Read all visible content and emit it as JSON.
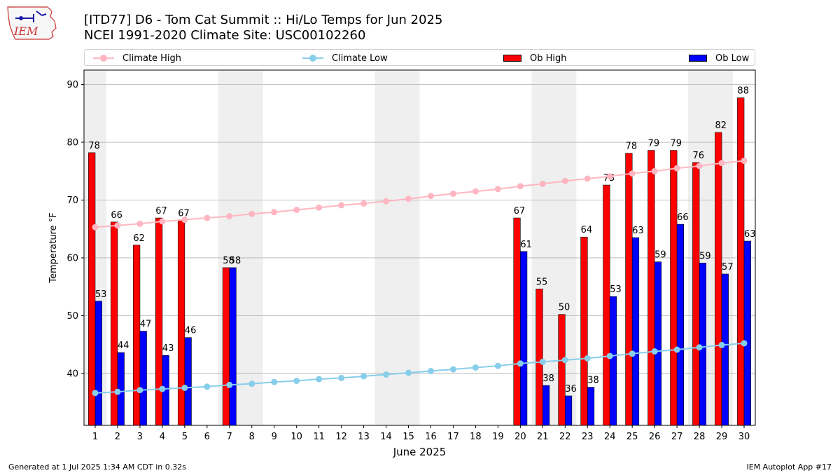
{
  "header": {
    "title_line1": "[ITD77] D6 - Tom Cat Summit  :: Hi/Lo Temps for Jun 2025",
    "title_line2": "NCEI 1991-2020 Climate Site: USC00102260",
    "logo_text": "IEM"
  },
  "footer": {
    "left": "Generated at 1 Jul 2025 1:34 AM CDT in 0.32s",
    "right": "IEM Autoplot App #17"
  },
  "colors": {
    "climate_high": "#ffb6c1",
    "climate_low": "#87ceeb",
    "ob_high": "#ff0000",
    "ob_low": "#0000ff",
    "weekend_shade": "#efefef",
    "grid": "#b0b0b0"
  },
  "chart_data": {
    "type": "bar",
    "xlabel": "June 2025",
    "ylabel": "Temperature °F",
    "ylim": [
      31,
      92.5
    ],
    "yticks": [
      40,
      50,
      60,
      70,
      80,
      90
    ],
    "grid": "horizontal",
    "legend_placement": "top",
    "categories": [
      "1",
      "2",
      "3",
      "4",
      "5",
      "6",
      "7",
      "8",
      "9",
      "10",
      "11",
      "12",
      "13",
      "14",
      "15",
      "16",
      "17",
      "18",
      "19",
      "20",
      "21",
      "22",
      "23",
      "24",
      "25",
      "26",
      "27",
      "28",
      "29",
      "30"
    ],
    "shaded_weekends": [
      [
        1,
        1
      ],
      [
        7,
        8
      ],
      [
        14,
        15
      ],
      [
        21,
        22
      ],
      [
        28,
        29
      ]
    ],
    "series": [
      {
        "name": "Climate High",
        "kind": "line",
        "values": [
          65.3,
          65.6,
          65.9,
          66.3,
          66.6,
          66.9,
          67.2,
          67.6,
          67.9,
          68.3,
          68.7,
          69.1,
          69.4,
          69.8,
          70.2,
          70.7,
          71.1,
          71.5,
          71.9,
          72.4,
          72.8,
          73.3,
          73.7,
          74.1,
          74.6,
          75.0,
          75.5,
          75.9,
          76.4,
          76.8
        ]
      },
      {
        "name": "Climate Low",
        "kind": "line",
        "values": [
          36.6,
          36.8,
          37.1,
          37.3,
          37.5,
          37.7,
          38.0,
          38.2,
          38.5,
          38.7,
          39.0,
          39.2,
          39.5,
          39.8,
          40.1,
          40.4,
          40.7,
          41.0,
          41.3,
          41.7,
          42.0,
          42.3,
          42.6,
          43.0,
          43.4,
          43.8,
          44.1,
          44.5,
          44.9,
          45.2
        ]
      },
      {
        "name": "Ob High",
        "kind": "bar",
        "values": [
          78.2,
          66.2,
          62.2,
          66.9,
          66.5,
          null,
          58.3,
          null,
          null,
          null,
          null,
          null,
          null,
          null,
          null,
          null,
          null,
          null,
          null,
          66.9,
          54.6,
          50.2,
          63.6,
          72.6,
          78.1,
          78.6,
          78.6,
          76.5,
          81.7,
          87.7
        ],
        "labels": [
          "78",
          "66",
          "62",
          "67",
          "67",
          null,
          "58",
          null,
          null,
          null,
          null,
          null,
          null,
          null,
          null,
          null,
          null,
          null,
          null,
          "67",
          "55",
          "50",
          "64",
          "73",
          "78",
          "79",
          "79",
          "76",
          "82",
          "88"
        ]
      },
      {
        "name": "Ob Low",
        "kind": "bar",
        "values": [
          52.5,
          43.6,
          47.3,
          43.1,
          46.2,
          null,
          58.3,
          null,
          null,
          null,
          null,
          null,
          null,
          null,
          null,
          null,
          null,
          null,
          null,
          61.1,
          37.9,
          36.1,
          37.6,
          53.3,
          63.5,
          59.3,
          65.8,
          59.1,
          57.2,
          62.9
        ],
        "labels": [
          "53",
          "44",
          "47",
          "43",
          "46",
          null,
          "58",
          null,
          null,
          null,
          null,
          null,
          null,
          null,
          null,
          null,
          null,
          null,
          null,
          "61",
          "38",
          "36",
          "38",
          "53",
          "63",
          "59",
          "66",
          "59",
          "57",
          "63"
        ]
      }
    ]
  }
}
